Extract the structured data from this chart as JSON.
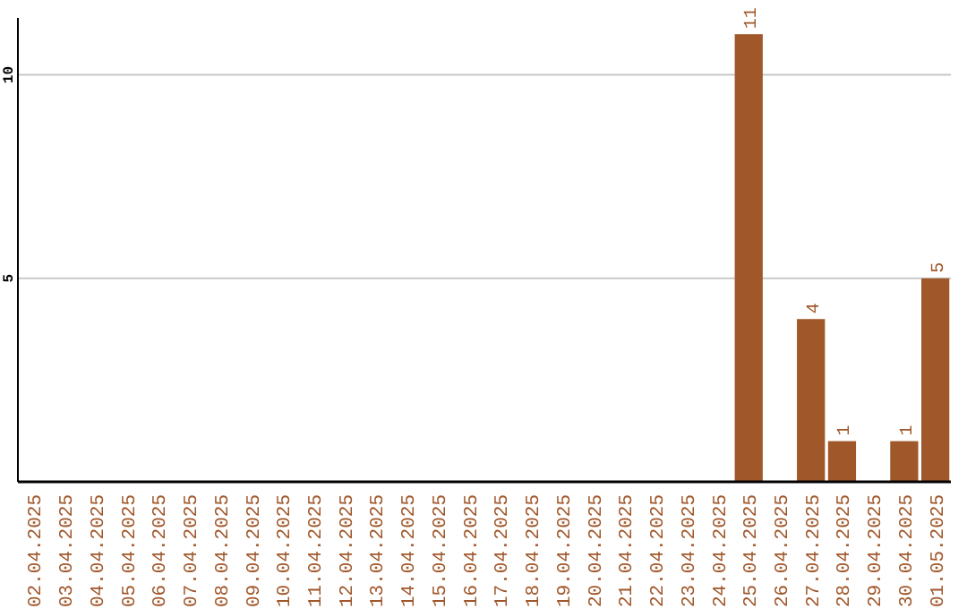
{
  "chart_data": {
    "type": "bar",
    "categories": [
      "02.04.2025",
      "03.04.2025",
      "04.04.2025",
      "05.04.2025",
      "06.04.2025",
      "07.04.2025",
      "08.04.2025",
      "09.04.2025",
      "10.04.2025",
      "11.04.2025",
      "12.04.2025",
      "13.04.2025",
      "14.04.2025",
      "15.04.2025",
      "16.04.2025",
      "17.04.2025",
      "18.04.2025",
      "19.04.2025",
      "20.04.2025",
      "21.04.2025",
      "22.04.2025",
      "23.04.2025",
      "24.04.2025",
      "25.04.2025",
      "26.04.2025",
      "27.04.2025",
      "28.04.2025",
      "29.04.2025",
      "30.04.2025",
      "01.05.2025"
    ],
    "values": [
      0,
      0,
      0,
      0,
      0,
      0,
      0,
      0,
      0,
      0,
      0,
      0,
      0,
      0,
      0,
      0,
      0,
      0,
      0,
      0,
      0,
      0,
      0,
      11,
      0,
      4,
      1,
      0,
      1,
      5
    ],
    "value_labels": [
      null,
      null,
      null,
      null,
      null,
      null,
      null,
      null,
      null,
      null,
      null,
      null,
      null,
      null,
      null,
      null,
      null,
      null,
      null,
      null,
      null,
      null,
      null,
      "11",
      null,
      "4",
      "1",
      null,
      "1",
      "5"
    ],
    "color": "#a0572a",
    "ylim": [
      0,
      11.4
    ],
    "yticks": [
      5,
      10
    ],
    "grid": "y"
  }
}
